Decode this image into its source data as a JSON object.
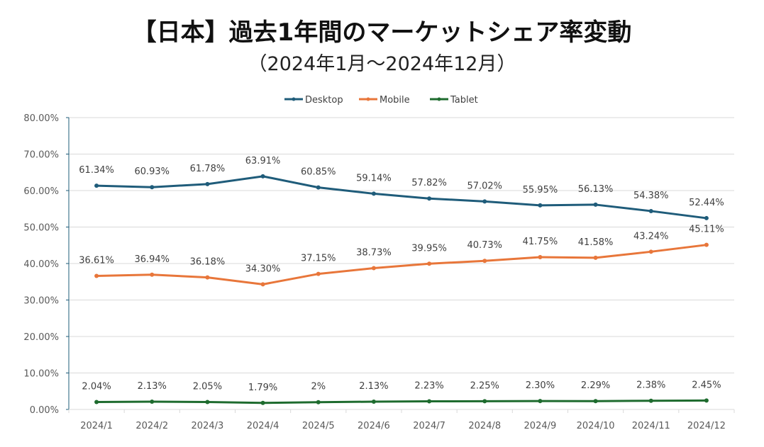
{
  "chart_data": {
    "type": "line",
    "title": "【日本】過去1年間のマーケットシェア率変動",
    "subtitle": "（2024年1月～2024年12月）",
    "categories": [
      "2024/1",
      "2024/2",
      "2024/3",
      "2024/4",
      "2024/5",
      "2024/6",
      "2024/7",
      "2024/8",
      "2024/9",
      "2024/10",
      "2024/11",
      "2024/12"
    ],
    "series": [
      {
        "name": "Desktop",
        "color": "#1f5c7a",
        "values": [
          61.34,
          60.93,
          61.78,
          63.91,
          60.85,
          59.14,
          57.82,
          57.02,
          55.95,
          56.13,
          54.38,
          52.44
        ],
        "labels": [
          "61.34%",
          "60.93%",
          "61.78%",
          "63.91%",
          "60.85%",
          "59.14%",
          "57.82%",
          "57.02%",
          "55.95%",
          "56.13%",
          "54.38%",
          "52.44%"
        ]
      },
      {
        "name": "Mobile",
        "color": "#e8763a",
        "values": [
          36.61,
          36.94,
          36.18,
          34.3,
          37.15,
          38.73,
          39.95,
          40.73,
          41.75,
          41.58,
          43.24,
          45.11
        ],
        "labels": [
          "36.61%",
          "36.94%",
          "36.18%",
          "34.30%",
          "37.15%",
          "38.73%",
          "39.95%",
          "40.73%",
          "41.75%",
          "41.58%",
          "43.24%",
          "45.11%"
        ]
      },
      {
        "name": "Tablet",
        "color": "#1e6b2e",
        "values": [
          2.04,
          2.13,
          2.05,
          1.79,
          2,
          2.13,
          2.23,
          2.25,
          2.3,
          2.29,
          2.38,
          2.45
        ],
        "labels": [
          "2.04%",
          "2.13%",
          "2.05%",
          "1.79%",
          "2%",
          "2.13%",
          "2.23%",
          "2.25%",
          "2.30%",
          "2.29%",
          "2.38%",
          "2.45%"
        ]
      }
    ],
    "yticks": [
      "0.00%",
      "10.00%",
      "20.00%",
      "30.00%",
      "40.00%",
      "50.00%",
      "60.00%",
      "70.00%",
      "80.00%"
    ],
    "ylim": [
      0,
      80
    ],
    "xlabel": "",
    "ylabel": "",
    "grid": true,
    "legend": "top"
  }
}
